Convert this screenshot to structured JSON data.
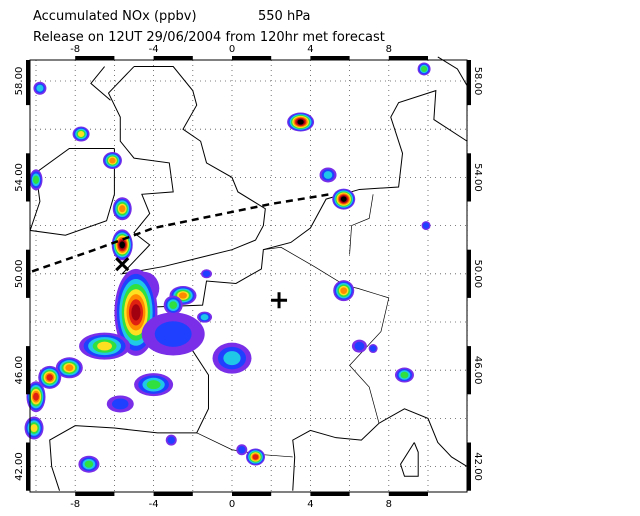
{
  "header": {
    "title": "Accumulated NOx  (ppbv)",
    "level": "550 hPa",
    "subtitle": "Release on 12UT 29/06/2004 from 120hr met forecast"
  },
  "map": {
    "lon_labels": [
      "-8",
      "-4",
      "0",
      "4",
      "8"
    ],
    "lat_labels": [
      "58.00",
      "54.00",
      "50.00",
      "46.00",
      "42.00"
    ]
  }
}
